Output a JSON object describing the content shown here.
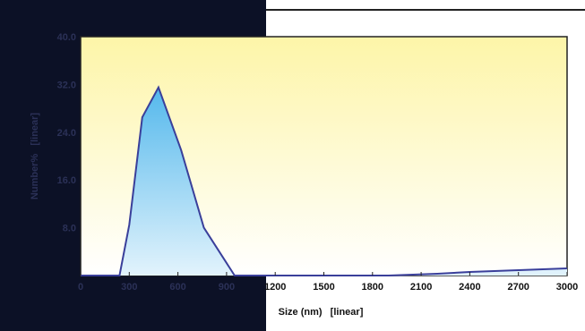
{
  "chart_data": {
    "type": "area",
    "title": "",
    "xlabel": "Size (nm)   [linear]",
    "ylabel": "Number%   [linear]",
    "xlim": [
      0,
      3000
    ],
    "ylim": [
      0,
      40
    ],
    "x_ticks": [
      "0",
      "300",
      "600",
      "900",
      "1200",
      "1500",
      "1800",
      "2100",
      "2400",
      "2700",
      "3000"
    ],
    "y_ticks": [
      "8.0",
      "16.0",
      "24.0",
      "32.0",
      "40.0"
    ],
    "series": [
      {
        "x": [
          0,
          240,
          300,
          380,
          480,
          620,
          760,
          950,
          1500,
          1900,
          2200,
          2400,
          2700,
          3000
        ],
        "y": [
          0,
          0,
          8.5,
          26.5,
          31.5,
          21,
          8,
          0,
          0,
          0,
          0.3,
          0.6,
          0.9,
          1.2
        ]
      }
    ],
    "colors": {
      "line": "#3a3f9a",
      "fill_top": "#54b8ec",
      "fill_bottom": "#e2f3fc",
      "plot_bg_top": "#fdf5a8",
      "plot_bg_bottom": "#ffffff"
    }
  }
}
